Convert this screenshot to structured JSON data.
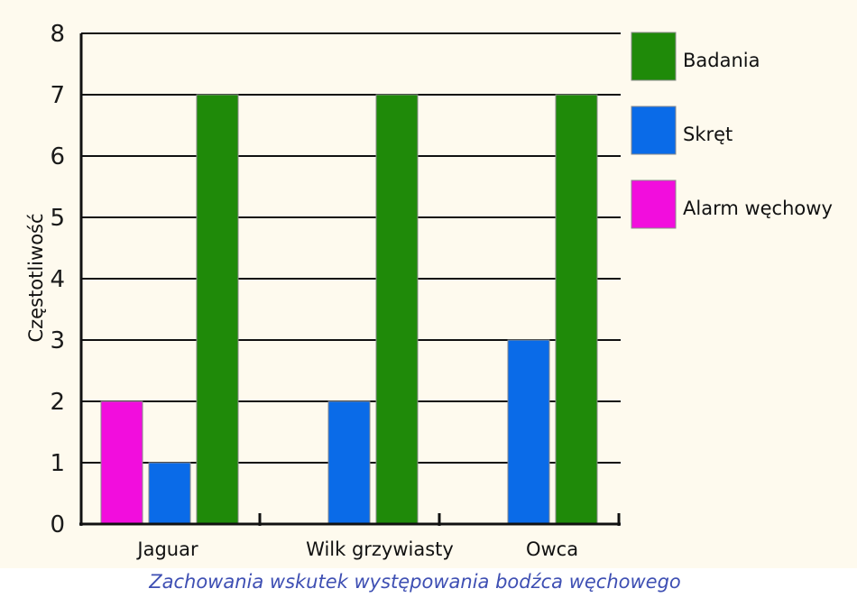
{
  "chart_data": {
    "type": "bar",
    "title": "Zachowania wskutek występowania bodźca węchowego",
    "xlabel": "",
    "ylabel": "Częstotliwość",
    "categories": [
      "Jaguar",
      "Wilk grzywiasty",
      "Owca"
    ],
    "series": [
      {
        "name": "Alarm węchowy",
        "color": "#f20ddd",
        "values": [
          2,
          0,
          0
        ]
      },
      {
        "name": "Skręt",
        "color": "#0a6be8",
        "values": [
          1,
          2,
          3
        ]
      },
      {
        "name": "Badania",
        "color": "#1f8a09",
        "values": [
          7,
          7,
          7
        ]
      }
    ],
    "legend_order": [
      "Badania",
      "Skręt",
      "Alarm węchowy"
    ],
    "ylim": [
      0,
      8
    ],
    "yticks": [
      0,
      1,
      2,
      3,
      4,
      5,
      6,
      7,
      8
    ],
    "grid": true,
    "legend_position": "right",
    "background_color": "#fefaee"
  }
}
